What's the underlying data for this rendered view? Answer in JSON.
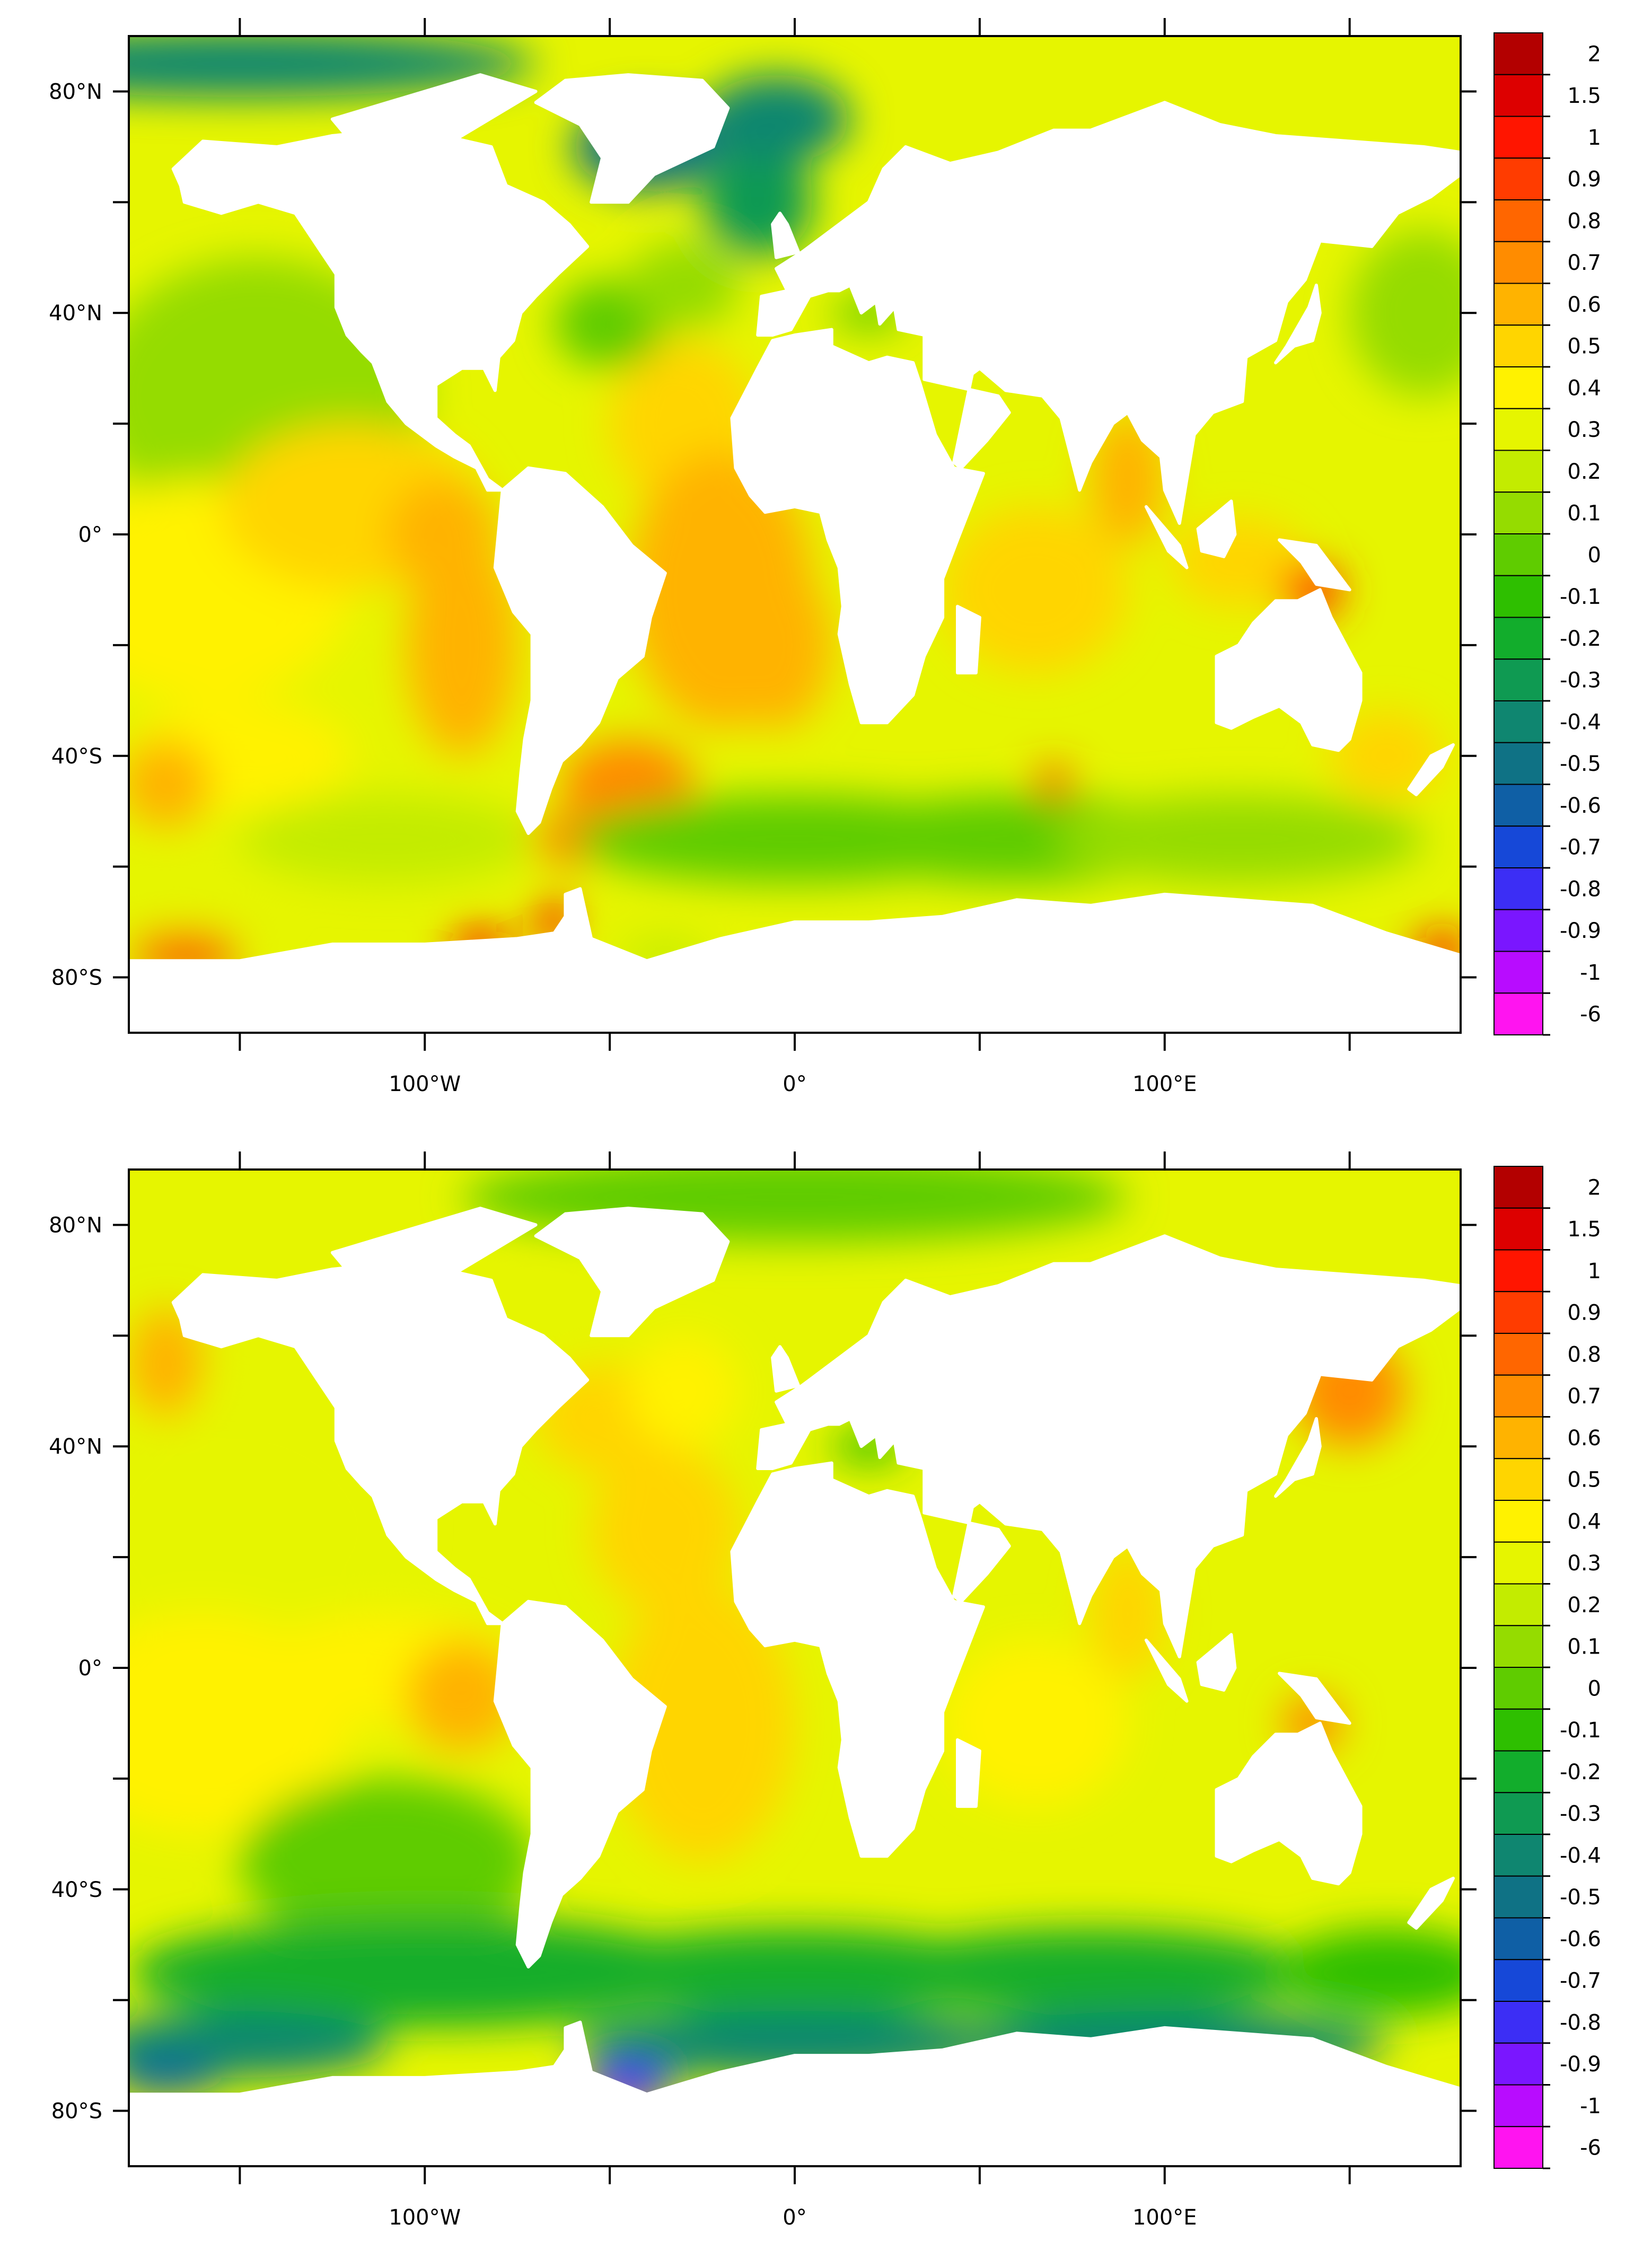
{
  "colorbar": {
    "labels": [
      "2",
      "1.5",
      "1",
      "0.9",
      "0.8",
      "0.7",
      "0.6",
      "0.5",
      "0.4",
      "0.3",
      "0.2",
      "0.1",
      "0",
      "-0.1",
      "-0.2",
      "-0.3",
      "-0.4",
      "-0.5",
      "-0.6",
      "-0.7",
      "-0.8",
      "-0.9",
      "-1",
      "-6"
    ],
    "colors": [
      "#b30000",
      "#dd0000",
      "#ff1500",
      "#ff3c00",
      "#ff6600",
      "#ff8c00",
      "#ffb300",
      "#ffd500",
      "#fff200",
      "#e6f500",
      "#c3ec00",
      "#95dc00",
      "#5fcc00",
      "#2ebf00",
      "#12ad2c",
      "#0f9a52",
      "#0f8670",
      "#0f7285",
      "#0f5fa5",
      "#1648d8",
      "#3c2ef5",
      "#7a16ff",
      "#b80cff",
      "#ff14f0"
    ]
  },
  "axes": {
    "x_ticks": [
      "100°W",
      "0°",
      "100°E"
    ],
    "y_ticks": [
      "80°N",
      "40°N",
      "0°",
      "40°S",
      "80°S"
    ]
  },
  "panels": [
    {
      "id": "top",
      "theme": "warm"
    },
    {
      "id": "bottom",
      "theme": "cool-south"
    }
  ]
}
